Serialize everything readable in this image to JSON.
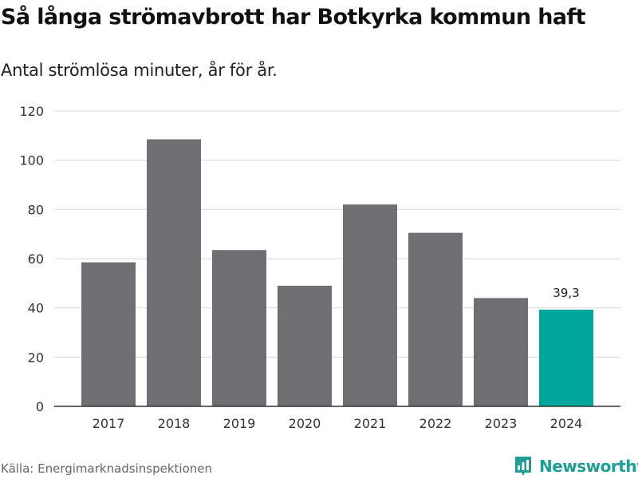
{
  "title": "Så långa strömavbrott har Botkyrka kommun haft",
  "subtitle": "Antal strömlösa minuter, år för år.",
  "source": "Källa: Energimarknadsinspektionen",
  "brand": {
    "name": "Newsworthy",
    "logo_icon": "newsworthy-bar-chart-logo-icon"
  },
  "colors": {
    "bar": "#6f6e73",
    "highlight": "#00a699",
    "grid": "#d9d9d9",
    "axis": "#333333",
    "brand": "#1f9e95"
  },
  "chart_data": {
    "type": "bar",
    "categories": [
      "2017",
      "2018",
      "2019",
      "2020",
      "2021",
      "2022",
      "2023",
      "2024"
    ],
    "values": [
      58.5,
      108.5,
      63.5,
      49,
      82,
      70.5,
      44,
      39.3
    ],
    "highlight_index": 7,
    "data_labels": [
      {
        "index": 7,
        "text": "39,3"
      }
    ],
    "title": "Så långa strömavbrott har Botkyrka kommun haft",
    "subtitle": "Antal strömlösa minuter, år för år.",
    "xlabel": "",
    "ylabel": "",
    "ylim": [
      0,
      120
    ],
    "yticks": [
      0,
      20,
      40,
      60,
      80,
      100,
      120
    ],
    "grid": true,
    "legend": "none"
  }
}
